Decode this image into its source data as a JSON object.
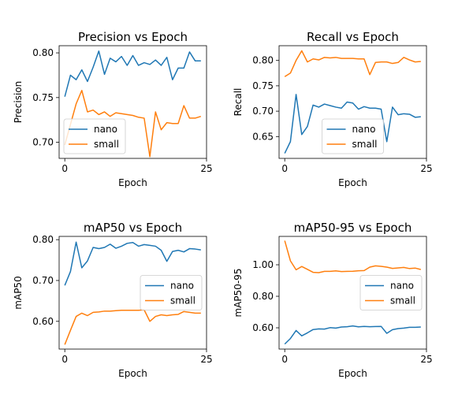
{
  "chart_data": [
    {
      "type": "line",
      "title": "Precision vs Epoch",
      "xlabel": "Epoch",
      "ylabel": "Precision",
      "xlim": [
        -1,
        25
      ],
      "ylim": [
        0.682,
        0.808
      ],
      "xticks": [
        0,
        25
      ],
      "yticks": [
        0.7,
        0.75,
        0.8
      ],
      "ytick_labels": [
        "0.70",
        "0.75",
        "0.80"
      ],
      "legend_loc": "lower-left",
      "x": [
        0,
        1,
        2,
        3,
        4,
        5,
        6,
        7,
        8,
        9,
        10,
        11,
        12,
        13,
        14,
        15,
        16,
        17,
        18,
        19,
        20,
        21,
        22,
        23,
        24
      ],
      "series": [
        {
          "name": "nano",
          "color": "#1f77b4",
          "values": [
            0.751,
            0.775,
            0.77,
            0.781,
            0.768,
            0.784,
            0.802,
            0.776,
            0.794,
            0.79,
            0.796,
            0.786,
            0.797,
            0.786,
            0.789,
            0.787,
            0.792,
            0.786,
            0.795,
            0.77,
            0.783,
            0.783,
            0.801,
            0.791,
            0.791
          ]
        },
        {
          "name": "small",
          "color": "#ff7f0e",
          "values": [
            0.697,
            0.72,
            0.743,
            0.758,
            0.734,
            0.736,
            0.731,
            0.734,
            0.729,
            0.733,
            0.732,
            0.731,
            0.73,
            0.728,
            0.727,
            0.684,
            0.734,
            0.714,
            0.722,
            0.721,
            0.721,
            0.741,
            0.727,
            0.727,
            0.729
          ]
        }
      ]
    },
    {
      "type": "line",
      "title": "Recall vs Epoch",
      "xlabel": "Epoch",
      "ylabel": "Recall",
      "xlim": [
        -1,
        25
      ],
      "ylim": [
        0.607,
        0.829
      ],
      "xticks": [
        0,
        25
      ],
      "yticks": [
        0.65,
        0.7,
        0.75,
        0.8
      ],
      "ytick_labels": [
        "0.65",
        "0.70",
        "0.75",
        "0.80"
      ],
      "legend_loc": "lower-center",
      "x": [
        0,
        1,
        2,
        3,
        4,
        5,
        6,
        7,
        8,
        9,
        10,
        11,
        12,
        13,
        14,
        15,
        16,
        17,
        18,
        19,
        20,
        21,
        22,
        23,
        24
      ],
      "series": [
        {
          "name": "nano",
          "color": "#1f77b4",
          "values": [
            0.617,
            0.64,
            0.733,
            0.654,
            0.67,
            0.712,
            0.708,
            0.714,
            0.711,
            0.708,
            0.706,
            0.718,
            0.716,
            0.704,
            0.709,
            0.706,
            0.706,
            0.704,
            0.64,
            0.708,
            0.693,
            0.695,
            0.694,
            0.688,
            0.689
          ]
        },
        {
          "name": "small",
          "color": "#ff7f0e",
          "values": [
            0.768,
            0.775,
            0.8,
            0.819,
            0.797,
            0.803,
            0.801,
            0.806,
            0.805,
            0.806,
            0.804,
            0.804,
            0.804,
            0.803,
            0.803,
            0.772,
            0.796,
            0.797,
            0.797,
            0.794,
            0.796,
            0.806,
            0.801,
            0.797,
            0.798
          ]
        }
      ]
    },
    {
      "type": "line",
      "title": "mAP50 vs Epoch",
      "xlabel": "Epoch",
      "ylabel": "mAP50",
      "xlim": [
        -1,
        25
      ],
      "ylim": [
        0.532,
        0.808
      ],
      "xticks": [
        0,
        25
      ],
      "yticks": [
        0.6,
        0.7,
        0.8
      ],
      "ytick_labels": [
        "0.60",
        "0.70",
        "0.80"
      ],
      "legend_loc": "center-right",
      "x": [
        0,
        1,
        2,
        3,
        4,
        5,
        6,
        7,
        8,
        9,
        10,
        11,
        12,
        13,
        14,
        15,
        16,
        17,
        18,
        19,
        20,
        21,
        22,
        23,
        24
      ],
      "series": [
        {
          "name": "nano",
          "color": "#1f77b4",
          "values": [
            0.688,
            0.722,
            0.794,
            0.731,
            0.748,
            0.781,
            0.778,
            0.781,
            0.789,
            0.779,
            0.784,
            0.791,
            0.793,
            0.784,
            0.788,
            0.786,
            0.784,
            0.774,
            0.747,
            0.771,
            0.774,
            0.77,
            0.778,
            0.777,
            0.775
          ]
        },
        {
          "name": "small",
          "color": "#ff7f0e",
          "values": [
            0.543,
            0.578,
            0.612,
            0.62,
            0.614,
            0.622,
            0.623,
            0.625,
            0.625,
            0.626,
            0.627,
            0.627,
            0.627,
            0.627,
            0.628,
            0.6,
            0.612,
            0.616,
            0.614,
            0.616,
            0.617,
            0.624,
            0.622,
            0.62,
            0.62
          ]
        }
      ]
    },
    {
      "type": "line",
      "title": "mAP50-95 vs Epoch",
      "xlabel": "Epoch",
      "ylabel": "mAP50-95",
      "xlim": [
        -1,
        25
      ],
      "ylim": [
        0.465,
        1.18
      ],
      "xticks": [
        0,
        25
      ],
      "yticks": [
        0.6,
        0.8,
        1.0
      ],
      "ytick_labels": [
        "0.60",
        "0.80",
        "1.00"
      ],
      "legend_loc": "center-right",
      "x": [
        0,
        1,
        2,
        3,
        4,
        5,
        6,
        7,
        8,
        9,
        10,
        11,
        12,
        13,
        14,
        15,
        16,
        17,
        18,
        19,
        20,
        21,
        22,
        23,
        24
      ],
      "series": [
        {
          "name": "nano",
          "color": "#1f77b4",
          "values": [
            0.497,
            0.532,
            0.583,
            0.549,
            0.568,
            0.589,
            0.593,
            0.592,
            0.601,
            0.598,
            0.605,
            0.607,
            0.612,
            0.606,
            0.609,
            0.607,
            0.608,
            0.609,
            0.565,
            0.588,
            0.595,
            0.598,
            0.603,
            0.603,
            0.605
          ]
        },
        {
          "name": "small",
          "color": "#ff7f0e",
          "values": [
            1.153,
            1.025,
            0.968,
            0.989,
            0.971,
            0.952,
            0.95,
            0.958,
            0.958,
            0.961,
            0.957,
            0.958,
            0.959,
            0.962,
            0.963,
            0.985,
            0.993,
            0.99,
            0.985,
            0.977,
            0.98,
            0.983,
            0.976,
            0.979,
            0.97
          ]
        }
      ]
    }
  ]
}
